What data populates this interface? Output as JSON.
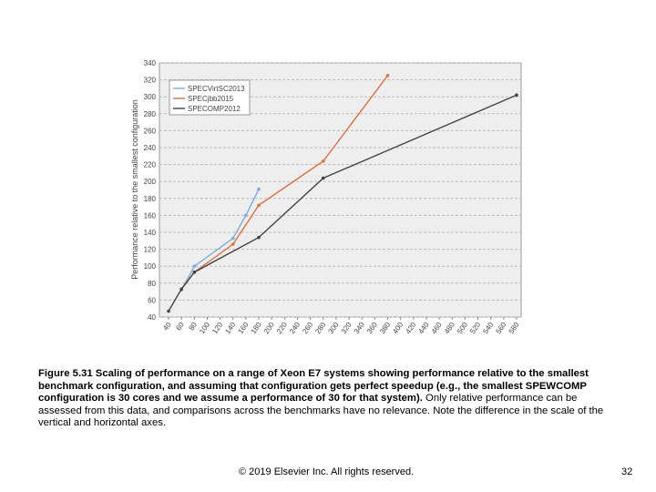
{
  "chart_data": {
    "type": "line",
    "y_label": "Performance relative to the smallest configuration",
    "xlim": [
      40,
      580
    ],
    "ylim": [
      40,
      340
    ],
    "xticks": [
      40,
      60,
      80,
      100,
      120,
      140,
      160,
      180,
      200,
      220,
      240,
      260,
      280,
      300,
      320,
      340,
      360,
      380,
      400,
      420,
      440,
      460,
      480,
      500,
      520,
      540,
      560,
      580
    ],
    "yticks": [
      40,
      60,
      80,
      100,
      120,
      140,
      160,
      180,
      200,
      220,
      240,
      260,
      280,
      300,
      320,
      340
    ],
    "grid": true,
    "legend": "upper-left",
    "series": [
      {
        "name": "SPECVirtSC2013",
        "color": "#7aaee0",
        "x": [
          60,
          80,
          140,
          160,
          180
        ],
        "values": [
          72,
          100,
          133,
          160,
          191
        ]
      },
      {
        "name": "SPECjbb2015",
        "color": "#e0703a",
        "x": [
          60,
          80,
          140,
          180,
          280,
          380
        ],
        "values": [
          73,
          93,
          126,
          172,
          224,
          325
        ]
      },
      {
        "name": "SPECOMP2012",
        "color": "#444444",
        "x": [
          40,
          60,
          80,
          180,
          280,
          580
        ],
        "values": [
          47,
          73,
          93,
          134,
          204,
          302
        ]
      }
    ]
  },
  "caption": {
    "bold": "Figure 5.31 Scaling of performance on a range of Xeon E7 systems showing performance relative to the smallest benchmark configuration, and assuming that configuration gets perfect speedup (e.g., the smallest SPEWCOMP configuration is 30 cores and we assume a performance of 30 for that system).",
    "normal": "Only relative performance can be assessed from this data, and comparisons across the benchmarks have no relevance. Note the difference in the scale of the vertical and horizontal axes."
  },
  "footer": {
    "copyright": "© 2019 Elsevier Inc. All rights reserved.",
    "page": "32"
  }
}
